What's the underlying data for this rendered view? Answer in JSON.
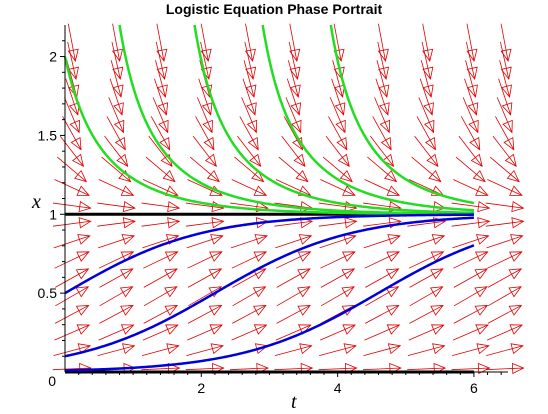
{
  "chart_data": {
    "type": "line",
    "title": "Logistic Equation Phase Portrait",
    "xlabel": "t",
    "ylabel": "x",
    "xlim": [
      0,
      6.5
    ],
    "ylim": [
      0,
      2.2
    ],
    "x_ticks": [
      {
        "value": 0,
        "label": "0"
      },
      {
        "value": 2,
        "label": "2"
      },
      {
        "value": 4,
        "label": "4"
      },
      {
        "value": 6,
        "label": "6"
      }
    ],
    "y_ticks": [
      {
        "value": 0.5,
        "label": "0.5"
      },
      {
        "value": 1,
        "label": "1"
      },
      {
        "value": 1.5,
        "label": "1.5"
      },
      {
        "value": 2,
        "label": "2"
      }
    ],
    "equation_rate": 1,
    "direction_field": {
      "t_values": [
        0.1,
        0.75,
        1.4,
        2.05,
        2.7,
        3.35,
        4.0,
        4.65,
        5.3,
        5.95,
        6.45
      ],
      "x_values": [
        0.02,
        0.135,
        0.25,
        0.365,
        0.48,
        0.595,
        0.71,
        0.825,
        0.94,
        1.055,
        1.17,
        1.285,
        1.4,
        1.515,
        1.63,
        1.745,
        1.86,
        1.975,
        2.09
      ],
      "color": "#e00000"
    },
    "equilibria": [
      {
        "x": 0,
        "t_range": [
          0,
          6
        ]
      },
      {
        "x": 1,
        "t_range": [
          0,
          6
        ]
      }
    ],
    "equilibrium_color": "#000000",
    "solutions_below": {
      "color": "#0000dd",
      "t_range": [
        0,
        6
      ],
      "initial_conditions": [
        {
          "t": 0,
          "x": 0.5
        },
        {
          "t": 0,
          "x": 0.1
        },
        {
          "t": 0,
          "x": 0.01
        }
      ]
    },
    "solutions_above": {
      "color": "#22dd22",
      "t_range": [
        0,
        6
      ],
      "initial_conditions": [
        {
          "t": 0,
          "x": 2.0
        },
        {
          "t": 0.8,
          "x": 2.2
        },
        {
          "t": 1.9,
          "x": 2.2
        },
        {
          "t": 2.9,
          "x": 2.2
        },
        {
          "t": 3.9,
          "x": 2.2
        }
      ]
    }
  }
}
